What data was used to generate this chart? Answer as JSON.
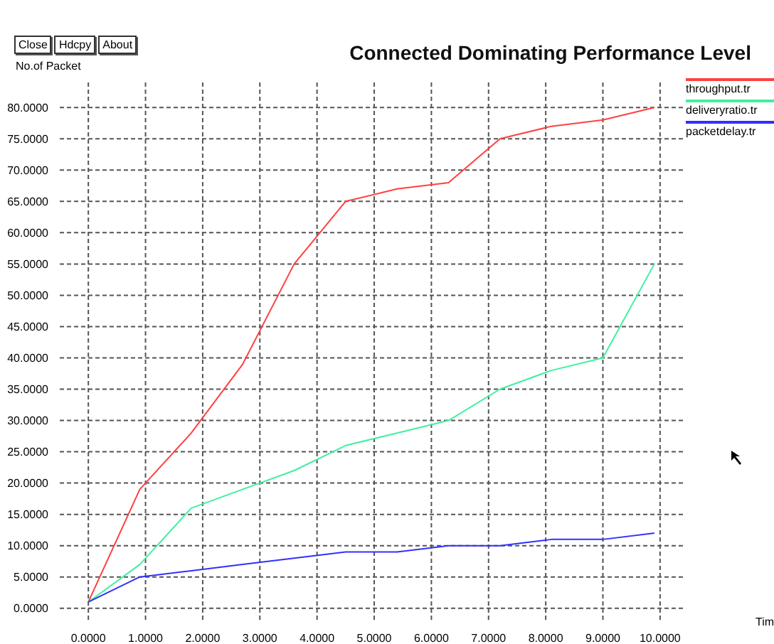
{
  "chart_data": {
    "type": "line",
    "title": "Connected Dominating Performance Level",
    "ylabel": "No.of Packet",
    "annotations": [
      "Close",
      "Hdcpy",
      "About",
      "Tim"
    ],
    "x": [
      0,
      0.9,
      1.8,
      2.7,
      3.6,
      4.5,
      5.4,
      6.3,
      7.2,
      8.1,
      9.0,
      9.9
    ],
    "series": [
      {
        "name": "throughput.tr",
        "color": "#ff4040",
        "values": [
          1,
          19,
          28,
          39,
          55,
          65,
          67,
          68,
          75,
          77,
          78,
          80
        ]
      },
      {
        "name": "deliveryratio.tr",
        "color": "#40f0a0",
        "values": [
          1,
          7,
          16,
          19,
          22,
          26,
          28,
          30,
          35,
          38,
          40,
          55
        ]
      },
      {
        "name": "packetdelay.tr",
        "color": "#3030ff",
        "values": [
          1,
          5,
          6,
          7,
          8,
          9,
          9,
          10,
          10,
          11,
          11,
          12
        ]
      }
    ],
    "xlim": [
      -0.5,
      10.4
    ],
    "ylim": [
      -2.3,
      84
    ],
    "xticks": [
      {
        "value": 0,
        "label": "0.0000"
      },
      {
        "value": 1,
        "label": "1.0000"
      },
      {
        "value": 2,
        "label": "2.0000"
      },
      {
        "value": 3,
        "label": "3.0000"
      },
      {
        "value": 4,
        "label": "4.0000"
      },
      {
        "value": 5,
        "label": "5.0000"
      },
      {
        "value": 6,
        "label": "6.0000"
      },
      {
        "value": 7,
        "label": "7.0000"
      },
      {
        "value": 8,
        "label": "8.0000"
      },
      {
        "value": 9,
        "label": "9.0000"
      },
      {
        "value": 10,
        "label": "10.0000"
      }
    ],
    "yticks": [
      {
        "value": 0,
        "label": "0.0000"
      },
      {
        "value": 5,
        "label": "5.0000"
      },
      {
        "value": 10,
        "label": "10.0000"
      },
      {
        "value": 15,
        "label": "15.0000"
      },
      {
        "value": 20,
        "label": "20.0000"
      },
      {
        "value": 25,
        "label": "25.0000"
      },
      {
        "value": 30,
        "label": "30.0000"
      },
      {
        "value": 35,
        "label": "35.0000"
      },
      {
        "value": 40,
        "label": "40.0000"
      },
      {
        "value": 45,
        "label": "45.0000"
      },
      {
        "value": 50,
        "label": "50.0000"
      },
      {
        "value": 55,
        "label": "55.0000"
      },
      {
        "value": 60,
        "label": "60.0000"
      },
      {
        "value": 65,
        "label": "65.0000"
      },
      {
        "value": 70,
        "label": "70.0000"
      },
      {
        "value": 75,
        "label": "75.0000"
      },
      {
        "value": 80,
        "label": "80.0000"
      }
    ],
    "grid": true,
    "legend": "top right",
    "marker": "none",
    "line_style": "solid"
  }
}
